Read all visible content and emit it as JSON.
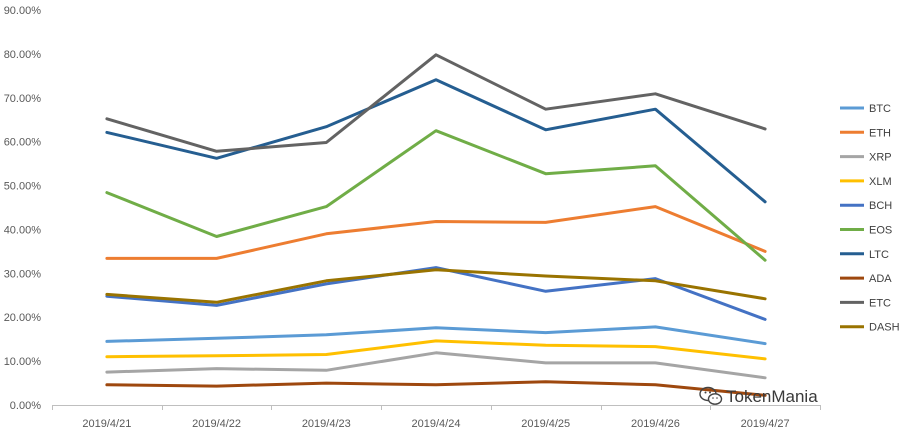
{
  "chart_data": {
    "type": "line",
    "title": "",
    "xlabel": "",
    "ylabel": "",
    "categories": [
      "2019/4/21",
      "2019/4/22",
      "2019/4/23",
      "2019/4/24",
      "2019/4/25",
      "2019/4/26",
      "2019/4/27"
    ],
    "y_tick_labels": [
      "0.00%",
      "10.00%",
      "20.00%",
      "30.00%",
      "40.00%",
      "50.00%",
      "60.00%",
      "70.00%",
      "80.00%",
      "90.00%"
    ],
    "ylim": [
      0,
      90
    ],
    "y_unit": "%",
    "grid": false,
    "legend_position": "right",
    "series": [
      {
        "name": "BTC",
        "color": "#5B9BD5",
        "values": [
          14.5,
          15.2,
          16.0,
          17.6,
          16.5,
          17.8,
          14.0
        ]
      },
      {
        "name": "ETH",
        "color": "#ED7D31",
        "values": [
          33.4,
          33.4,
          39.0,
          41.8,
          41.6,
          45.2,
          35.0
        ]
      },
      {
        "name": "XRP",
        "color": "#A5A5A5",
        "values": [
          7.5,
          8.3,
          7.9,
          11.9,
          9.6,
          9.6,
          6.2
        ]
      },
      {
        "name": "XLM",
        "color": "#FFC000",
        "values": [
          11.0,
          11.2,
          11.5,
          14.6,
          13.6,
          13.3,
          10.5
        ]
      },
      {
        "name": "BCH",
        "color": "#4472C4",
        "values": [
          24.8,
          22.7,
          27.6,
          31.3,
          25.9,
          28.8,
          19.5
        ]
      },
      {
        "name": "EOS",
        "color": "#70AD47",
        "values": [
          48.4,
          38.4,
          45.2,
          62.5,
          52.7,
          54.5,
          33.0
        ]
      },
      {
        "name": "LTC",
        "color": "#255E91",
        "values": [
          62.1,
          56.2,
          63.4,
          74.1,
          62.7,
          67.4,
          46.3
        ]
      },
      {
        "name": "ADA",
        "color": "#9E480E",
        "values": [
          4.6,
          4.3,
          5.0,
          4.6,
          5.3,
          4.6,
          2.2
        ]
      },
      {
        "name": "ETC",
        "color": "#636363",
        "values": [
          65.2,
          57.8,
          59.8,
          79.8,
          67.4,
          70.9,
          62.9
        ]
      },
      {
        "name": "DASH",
        "color": "#997300",
        "values": [
          25.2,
          23.4,
          28.3,
          30.8,
          29.4,
          28.3,
          24.2
        ]
      }
    ]
  },
  "watermark": {
    "text": "TokenMania",
    "icon": "wechat-icon"
  }
}
